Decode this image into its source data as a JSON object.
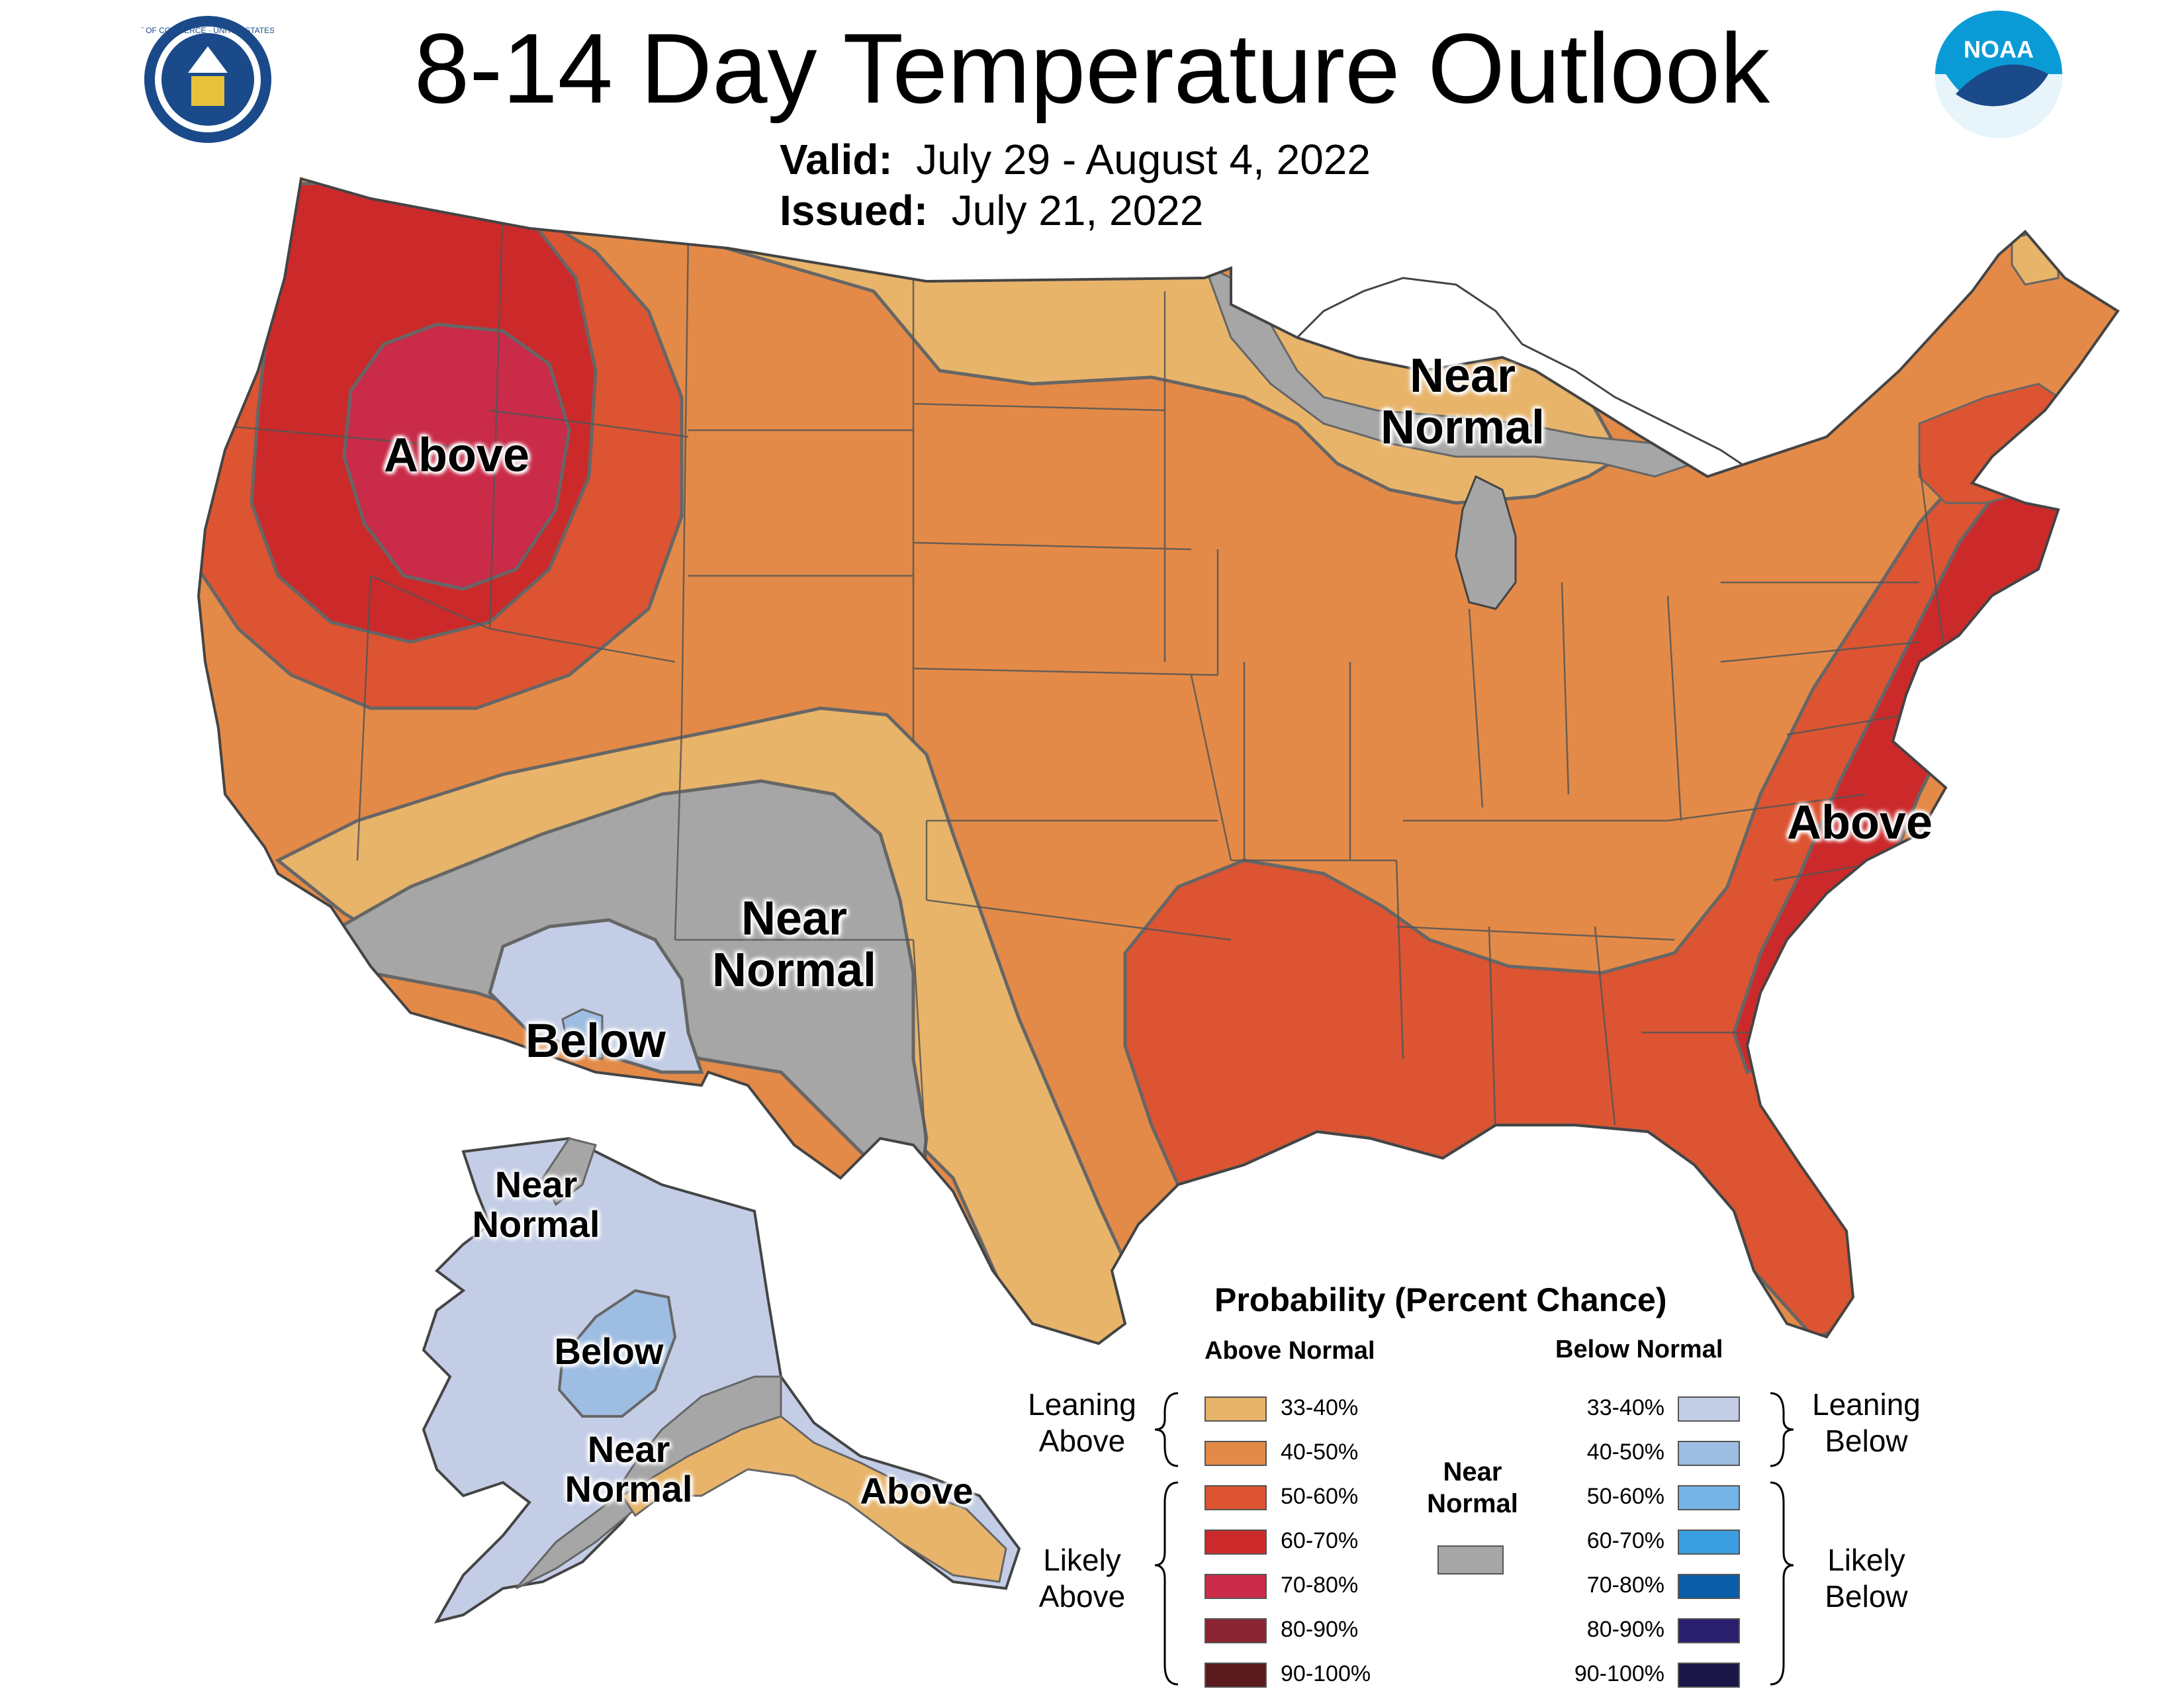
{
  "header": {
    "title": "8-14 Day Temperature Outlook",
    "valid_label": "Valid:",
    "valid_value": "July 29 - August 4, 2022",
    "issued_label": "Issued:",
    "issued_value": "July 21, 2022"
  },
  "logos": {
    "left": {
      "icon": "department-of-commerce-seal-icon",
      "text": "DEPARTMENT OF COMMERCE · UNITED STATES OF AMERICA"
    },
    "right": {
      "icon": "noaa-logo-icon",
      "text": "NOAA"
    }
  },
  "map_labels": {
    "northwest_above": "Above",
    "great_lakes_near_normal_1": "Near",
    "great_lakes_near_normal_2": "Normal",
    "southwest_near_normal_1": "Near",
    "southwest_near_normal_2": "Normal",
    "southwest_below": "Below",
    "east_coast_above": "Above",
    "alaska_nw_near_1": "Near",
    "alaska_nw_near_2": "Normal",
    "alaska_below": "Below",
    "alaska_south_near_1": "Near",
    "alaska_south_near_2": "Normal",
    "alaska_above": "Above"
  },
  "legend": {
    "title": "Probability (Percent Chance)",
    "above_header": "Above Normal",
    "below_header": "Below Normal",
    "leaning_above_1": "Leaning",
    "leaning_above_2": "Above",
    "likely_above_1": "Likely",
    "likely_above_2": "Above",
    "leaning_below_1": "Leaning",
    "leaning_below_2": "Below",
    "likely_below_1": "Likely",
    "likely_below_2": "Below",
    "near_normal_1": "Near",
    "near_normal_2": "Normal",
    "near_normal_color": "#a6a6a6",
    "above": [
      {
        "label": "33-40%",
        "color": "#e8b46a"
      },
      {
        "label": "40-50%",
        "color": "#e38a48"
      },
      {
        "label": "50-60%",
        "color": "#dc5431"
      },
      {
        "label": "60-70%",
        "color": "#cc2a2a"
      },
      {
        "label": "70-80%",
        "color": "#c92b48"
      },
      {
        "label": "80-90%",
        "color": "#8b2432"
      },
      {
        "label": "90-100%",
        "color": "#5a1a1e"
      }
    ],
    "below": [
      {
        "label": "33-40%",
        "color": "#c3cde6"
      },
      {
        "label": "40-50%",
        "color": "#9ebde2"
      },
      {
        "label": "50-60%",
        "color": "#74b4e6"
      },
      {
        "label": "60-70%",
        "color": "#3a9ee0"
      },
      {
        "label": "70-80%",
        "color": "#0a5ea8"
      },
      {
        "label": "80-90%",
        "color": "#2a1f6e"
      },
      {
        "label": "90-100%",
        "color": "#1a1648"
      }
    ]
  }
}
